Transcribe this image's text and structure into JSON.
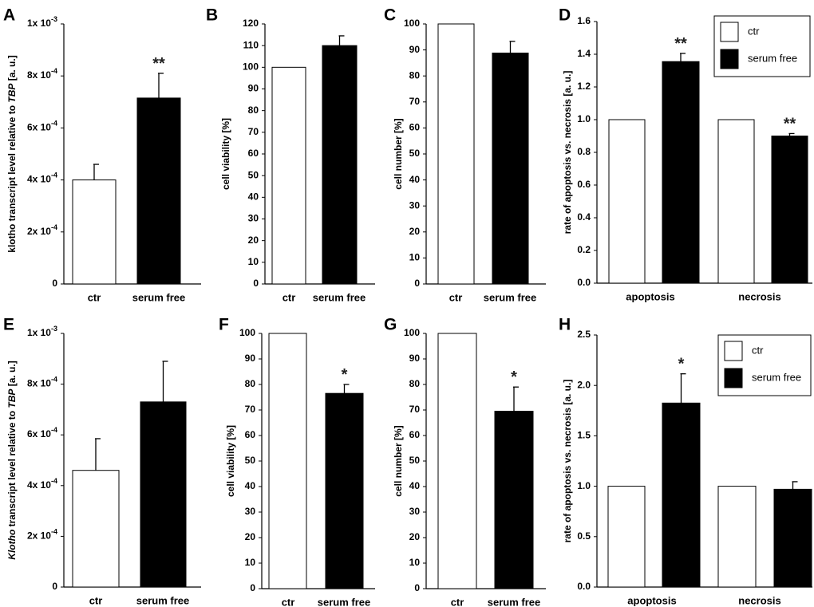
{
  "colors": {
    "ctr_fill": "#ffffff",
    "serum_fill": "#000000",
    "axis": "#000000"
  },
  "chart_data": [
    {
      "id": "A",
      "type": "bar",
      "panel_label": "A",
      "ylabel": "klotho transcript level relative to TBP [a. u.]",
      "ylabel_italic": "TBP",
      "categories": [
        "ctr",
        "serum free"
      ],
      "values": [
        0.0004,
        0.000715
      ],
      "errors": [
        6e-05,
        9.5e-05
      ],
      "ylim": [
        0,
        0.001
      ],
      "yticks": [
        0,
        0.0002,
        0.0004,
        0.0006,
        0.0008,
        0.001
      ],
      "ytick_mantissa": [
        "0",
        "2x 10",
        "4x 10",
        "6x 10",
        "8x 10",
        "1x 10"
      ],
      "ytick_exponent": [
        "",
        "-4",
        "-4",
        "-4",
        "-4",
        "-3"
      ],
      "significance": [
        "",
        "**"
      ]
    },
    {
      "id": "B",
      "type": "bar",
      "panel_label": "B",
      "ylabel": "cell viability [%]",
      "categories": [
        "ctr",
        "serum free"
      ],
      "values": [
        100,
        110
      ],
      "errors": [
        0,
        4.5
      ],
      "ylim": [
        0,
        120
      ],
      "yticks": [
        0,
        10,
        20,
        30,
        40,
        50,
        60,
        70,
        80,
        90,
        100,
        110,
        120
      ],
      "ytick_labels": [
        "0",
        "10",
        "20",
        "30",
        "40",
        "50",
        "60",
        "70",
        "80",
        "90",
        "100",
        "110",
        "120"
      ],
      "significance": [
        "",
        ""
      ]
    },
    {
      "id": "C",
      "type": "bar",
      "panel_label": "C",
      "ylabel": "cell number [%]",
      "categories": [
        "ctr",
        "serum free"
      ],
      "values": [
        100,
        88.8
      ],
      "errors": [
        0,
        4.5
      ],
      "ylim": [
        0,
        100
      ],
      "yticks": [
        0,
        10,
        20,
        30,
        40,
        50,
        60,
        70,
        80,
        90,
        100
      ],
      "ytick_labels": [
        "0",
        "10",
        "20",
        "30",
        "40",
        "50",
        "60",
        "70",
        "80",
        "90",
        "100"
      ],
      "significance": [
        "",
        ""
      ]
    },
    {
      "id": "D",
      "type": "bar",
      "panel_label": "D",
      "ylabel": "rate of apoptosis vs. necrosis [a. u.]",
      "categories": [
        "apoptosis",
        "necrosis"
      ],
      "series": [
        {
          "name": "ctr",
          "values": [
            1.0,
            1.0
          ],
          "errors": [
            0,
            0
          ],
          "significance": [
            "",
            ""
          ]
        },
        {
          "name": "serum free",
          "values": [
            1.355,
            0.9
          ],
          "errors": [
            0.05,
            0.015
          ],
          "significance": [
            "**",
            "**"
          ]
        }
      ],
      "ylim": [
        0,
        1.6
      ],
      "yticks": [
        0,
        0.2,
        0.4,
        0.6,
        0.8,
        1.0,
        1.2,
        1.4,
        1.6
      ],
      "ytick_labels": [
        "0.0",
        "0.2",
        "0.4",
        "0.6",
        "0.8",
        "1.0",
        "1.2",
        "1.4",
        "1.6"
      ],
      "legend": {
        "entries": [
          "ctr",
          "serum free"
        ],
        "position": "top-right"
      }
    },
    {
      "id": "E",
      "type": "bar",
      "panel_label": "E",
      "ylabel": "Klotho transcript level relative to TBP [a. u.]",
      "ylabel_italic": "Klotho,TBP",
      "categories": [
        "ctr",
        "serum free"
      ],
      "values": [
        0.00046,
        0.00073
      ],
      "errors": [
        0.000125,
        0.00016
      ],
      "ylim": [
        0,
        0.001
      ],
      "yticks": [
        0,
        0.0002,
        0.0004,
        0.0006,
        0.0008,
        0.001
      ],
      "ytick_mantissa": [
        "0",
        "2x 10",
        "4x 10",
        "6x 10",
        "8x 10",
        "1x 10"
      ],
      "ytick_exponent": [
        "",
        "-4",
        "-4",
        "-4",
        "-4",
        "-3"
      ],
      "significance": [
        "",
        ""
      ]
    },
    {
      "id": "F",
      "type": "bar",
      "panel_label": "F",
      "ylabel": "cell viability [%]",
      "categories": [
        "ctr",
        "serum free"
      ],
      "values": [
        100,
        76.5
      ],
      "errors": [
        0,
        3.5
      ],
      "ylim": [
        0,
        100
      ],
      "yticks": [
        0,
        10,
        20,
        30,
        40,
        50,
        60,
        70,
        80,
        90,
        100
      ],
      "ytick_labels": [
        "0",
        "10",
        "20",
        "30",
        "40",
        "50",
        "60",
        "70",
        "80",
        "90",
        "100"
      ],
      "significance": [
        "",
        "*"
      ]
    },
    {
      "id": "G",
      "type": "bar",
      "panel_label": "G",
      "ylabel": "cell number [%]",
      "categories": [
        "ctr",
        "serum free"
      ],
      "values": [
        100,
        69.5
      ],
      "errors": [
        0,
        9.5
      ],
      "ylim": [
        0,
        100
      ],
      "yticks": [
        0,
        10,
        20,
        30,
        40,
        50,
        60,
        70,
        80,
        90,
        100
      ],
      "ytick_labels": [
        "0",
        "10",
        "20",
        "30",
        "40",
        "50",
        "60",
        "70",
        "80",
        "90",
        "100"
      ],
      "significance": [
        "",
        "*"
      ]
    },
    {
      "id": "H",
      "type": "bar",
      "panel_label": "H",
      "ylabel": "rate of apoptosis vs. necrosis [a. u.]",
      "categories": [
        "apoptosis",
        "necrosis"
      ],
      "series": [
        {
          "name": "ctr",
          "values": [
            1.0,
            1.0
          ],
          "errors": [
            0,
            0
          ],
          "significance": [
            "",
            ""
          ]
        },
        {
          "name": "serum free",
          "values": [
            1.825,
            0.97
          ],
          "errors": [
            0.29,
            0.075
          ],
          "significance": [
            "*",
            ""
          ]
        }
      ],
      "ylim": [
        0,
        2.5
      ],
      "yticks": [
        0,
        0.5,
        1.0,
        1.5,
        2.0,
        2.5
      ],
      "ytick_labels": [
        "0.0",
        "0.5",
        "1.0",
        "1.5",
        "2.0",
        "2.5"
      ],
      "legend": {
        "entries": [
          "ctr",
          "serum free"
        ],
        "position": "top-right"
      }
    }
  ]
}
